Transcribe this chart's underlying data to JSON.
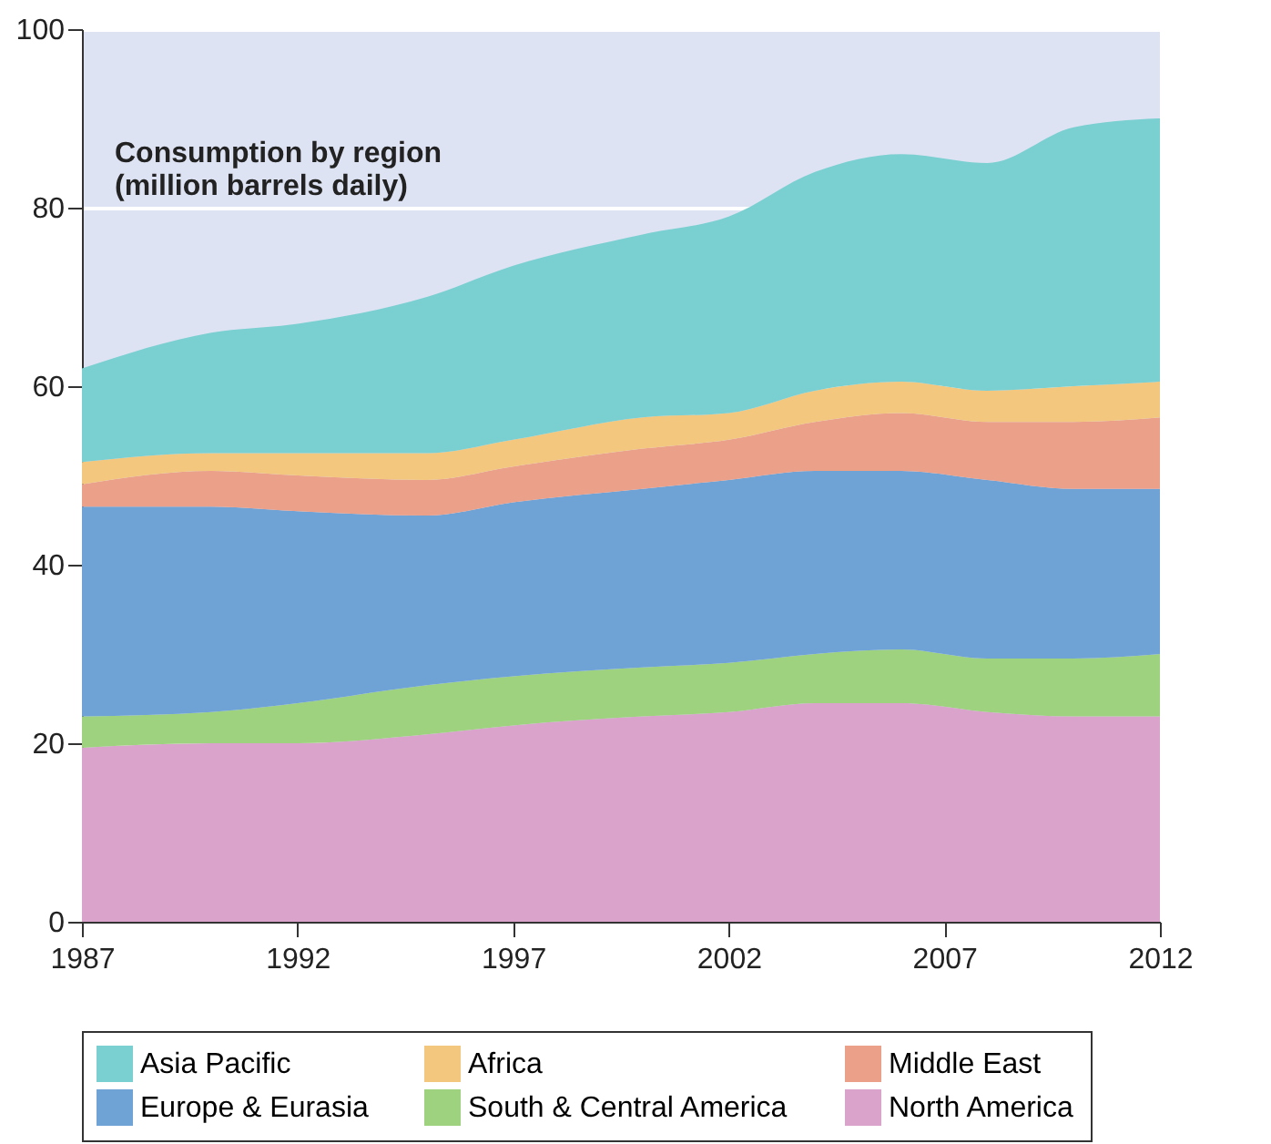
{
  "chart_data": {
    "type": "area",
    "title": "Consumption by region",
    "subtitle": "(million barrels daily)",
    "x": [
      1987,
      1990,
      1992,
      1995,
      1997,
      2000,
      2002,
      2004,
      2006,
      2008,
      2010,
      2012
    ],
    "stacked": true,
    "series": [
      {
        "name": "North America",
        "color": "#d9a3cc",
        "values": [
          19.5,
          20,
          20,
          21,
          22,
          23,
          23.5,
          24.5,
          24.5,
          23.5,
          23,
          23
        ]
      },
      {
        "name": "South & Central America",
        "color": "#9ed27f",
        "values": [
          3.5,
          3.5,
          4.5,
          5.5,
          5.5,
          5.5,
          5.5,
          5.5,
          6,
          6,
          6.5,
          7
        ]
      },
      {
        "name": "Europe & Eurasia",
        "color": "#6fa3d6",
        "values": [
          23.5,
          23,
          21.5,
          19,
          19.5,
          20,
          20.5,
          20.5,
          20,
          20,
          19,
          18.5
        ]
      },
      {
        "name": "Middle East",
        "color": "#eba08a",
        "values": [
          2.5,
          4,
          4,
          4,
          4,
          4.5,
          4.5,
          5.5,
          6.5,
          6.5,
          7.5,
          8
        ]
      },
      {
        "name": "Africa",
        "color": "#f4c77f",
        "values": [
          2.5,
          2,
          2.5,
          3,
          3,
          3.5,
          3,
          3.5,
          3.5,
          3.5,
          4,
          4
        ]
      },
      {
        "name": "Asia Pacific",
        "color": "#7acfd0",
        "values": [
          10.5,
          13.5,
          14.5,
          17.5,
          19.5,
          20.5,
          22,
          24.5,
          25.5,
          25.5,
          29,
          29.5
        ]
      }
    ],
    "xlim": [
      1987,
      2012
    ],
    "xticks": [
      1987,
      1992,
      1997,
      2002,
      2007,
      2012
    ],
    "ylim": [
      0,
      100
    ],
    "yticks": [
      0,
      20,
      40,
      60,
      80,
      100
    ],
    "grid": "y",
    "legend": "bottom"
  }
}
